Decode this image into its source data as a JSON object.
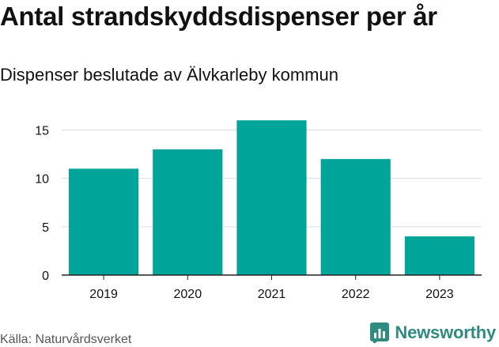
{
  "title": "Antal strandskyddsdispenser per år",
  "subtitle": "Dispenser beslutade av Älvkarleby kommun",
  "source": "Källa: Naturvårdsverket",
  "brand": {
    "name": "Newsworthy",
    "icon": "bar-chart-logo-icon",
    "color": "#2f8a80"
  },
  "colors": {
    "bar": "#00a499",
    "grid": "#dddddd",
    "axis": "#222222",
    "text": "#111111"
  },
  "chart_data": {
    "type": "bar",
    "title": "Antal strandskyddsdispenser per år",
    "subtitle": "Dispenser beslutade av Älvkarleby kommun",
    "categories": [
      "2019",
      "2020",
      "2021",
      "2022",
      "2023"
    ],
    "values": [
      11,
      13,
      16,
      12,
      4
    ],
    "yticks": [
      0,
      5,
      10,
      15
    ],
    "ylim": [
      0,
      17
    ],
    "xlabel": "",
    "ylabel": "",
    "grid": true,
    "legend": "none"
  }
}
